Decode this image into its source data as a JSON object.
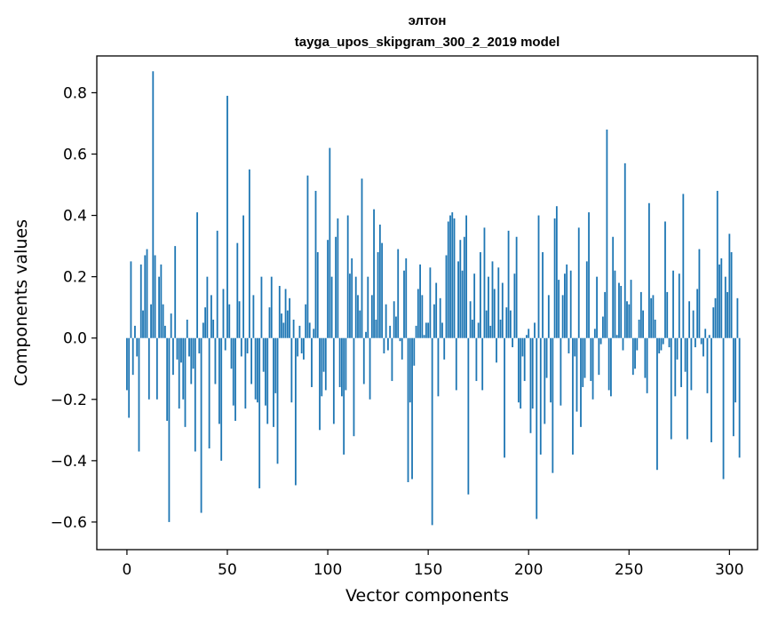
{
  "chart_data": {
    "type": "bar",
    "title_line1": "элтон",
    "title_line2": "tayga_upos_skipgram_300_2_2019 model",
    "xlabel": "Vector components",
    "ylabel": "Components values",
    "xlim": [
      -15,
      314
    ],
    "ylim": [
      -0.69,
      0.92
    ],
    "xticks": [
      0,
      50,
      100,
      150,
      200,
      250,
      300
    ],
    "xtick_labels": [
      "0",
      "50",
      "100",
      "150",
      "200",
      "250",
      "300"
    ],
    "yticks": [
      -0.6,
      -0.4,
      -0.2,
      0.0,
      0.2,
      0.4,
      0.6,
      0.8
    ],
    "ytick_labels": [
      "−0.6",
      "−0.4",
      "−0.2",
      "0.0",
      "0.2",
      "0.4",
      "0.6",
      "0.8"
    ],
    "bar_color": "#1f77b4",
    "grid": false,
    "values": [
      -0.17,
      -0.26,
      0.25,
      -0.12,
      0.04,
      -0.06,
      -0.37,
      0.24,
      0.09,
      0.27,
      0.29,
      -0.2,
      0.11,
      0.87,
      0.27,
      -0.2,
      0.2,
      0.24,
      0.11,
      0.04,
      -0.27,
      -0.6,
      0.08,
      -0.12,
      0.3,
      -0.07,
      -0.23,
      -0.08,
      -0.2,
      -0.29,
      0.06,
      -0.06,
      -0.15,
      -0.1,
      -0.37,
      0.41,
      -0.05,
      -0.57,
      0.05,
      0.1,
      0.2,
      -0.36,
      0.14,
      0.06,
      -0.15,
      0.35,
      -0.28,
      -0.4,
      0.16,
      -0.04,
      0.79,
      0.11,
      -0.1,
      -0.22,
      -0.27,
      0.31,
      0.12,
      -0.06,
      0.4,
      -0.23,
      -0.05,
      0.55,
      -0.15,
      0.14,
      -0.2,
      -0.21,
      -0.49,
      0.2,
      -0.11,
      -0.22,
      -0.28,
      0.1,
      0.2,
      -0.29,
      -0.18,
      -0.41,
      0.17,
      0.08,
      0.05,
      0.16,
      0.09,
      0.13,
      -0.21,
      0.06,
      -0.48,
      -0.06,
      0.04,
      -0.05,
      -0.07,
      0.11,
      0.53,
      0.05,
      -0.16,
      0.03,
      0.48,
      0.28,
      -0.3,
      -0.19,
      -0.11,
      -0.17,
      0.32,
      0.62,
      0.2,
      -0.28,
      0.33,
      0.39,
      -0.16,
      -0.19,
      -0.38,
      -0.17,
      0.4,
      0.21,
      0.26,
      -0.32,
      0.2,
      0.14,
      0.09,
      0.52,
      -0.15,
      0.02,
      0.2,
      -0.2,
      0.14,
      0.42,
      0.06,
      0.28,
      0.37,
      0.31,
      -0.05,
      0.11,
      -0.04,
      0.04,
      -0.14,
      0.12,
      0.07,
      0.29,
      -0.01,
      -0.07,
      0.22,
      0.26,
      -0.47,
      -0.21,
      -0.46,
      -0.09,
      0.04,
      0.16,
      0.24,
      0.14,
      0.01,
      0.05,
      0.05,
      0.23,
      -0.61,
      0.11,
      0.18,
      -0.19,
      0.13,
      0.05,
      -0.07,
      0.27,
      0.38,
      0.4,
      0.41,
      0.39,
      -0.17,
      0.25,
      0.32,
      0.22,
      0.33,
      0.4,
      -0.51,
      0.12,
      0.06,
      0.21,
      -0.14,
      0.05,
      0.28,
      -0.17,
      0.36,
      0.09,
      0.2,
      0.04,
      0.25,
      0.16,
      -0.08,
      0.23,
      0.06,
      0.18,
      -0.39,
      0.1,
      0.35,
      0.09,
      -0.03,
      0.21,
      0.33,
      -0.21,
      -0.23,
      -0.06,
      -0.14,
      0.01,
      0.03,
      -0.31,
      -0.23,
      0.05,
      -0.59,
      0.4,
      -0.38,
      0.28,
      -0.28,
      -0.13,
      0.14,
      -0.21,
      -0.44,
      0.39,
      0.43,
      0.19,
      -0.22,
      0.14,
      0.21,
      0.24,
      -0.05,
      0.22,
      -0.38,
      -0.06,
      -0.24,
      0.36,
      -0.29,
      -0.16,
      -0.13,
      0.25,
      0.41,
      -0.14,
      -0.2,
      0.03,
      0.2,
      -0.12,
      -0.02,
      0.07,
      0.15,
      0.68,
      -0.17,
      -0.19,
      0.33,
      0.22,
      0.01,
      0.18,
      0.17,
      -0.04,
      0.57,
      0.12,
      0.11,
      0.19,
      -0.12,
      -0.1,
      -0.04,
      0.06,
      0.15,
      0.09,
      -0.13,
      -0.18,
      0.44,
      0.13,
      0.14,
      0.06,
      -0.43,
      -0.05,
      -0.04,
      -0.02,
      0.38,
      0.15,
      -0.03,
      -0.33,
      0.22,
      -0.19,
      -0.07,
      0.21,
      -0.16,
      0.47,
      -0.11,
      -0.33,
      0.12,
      -0.17,
      0.09,
      -0.03,
      0.16,
      0.29,
      -0.02,
      -0.06,
      0.03,
      -0.18,
      0.01,
      -0.34,
      0.1,
      0.13,
      0.48,
      0.24,
      0.26,
      -0.46,
      0.2,
      0.15,
      0.34,
      0.28,
      -0.32,
      -0.21,
      0.13,
      -0.39
    ]
  }
}
